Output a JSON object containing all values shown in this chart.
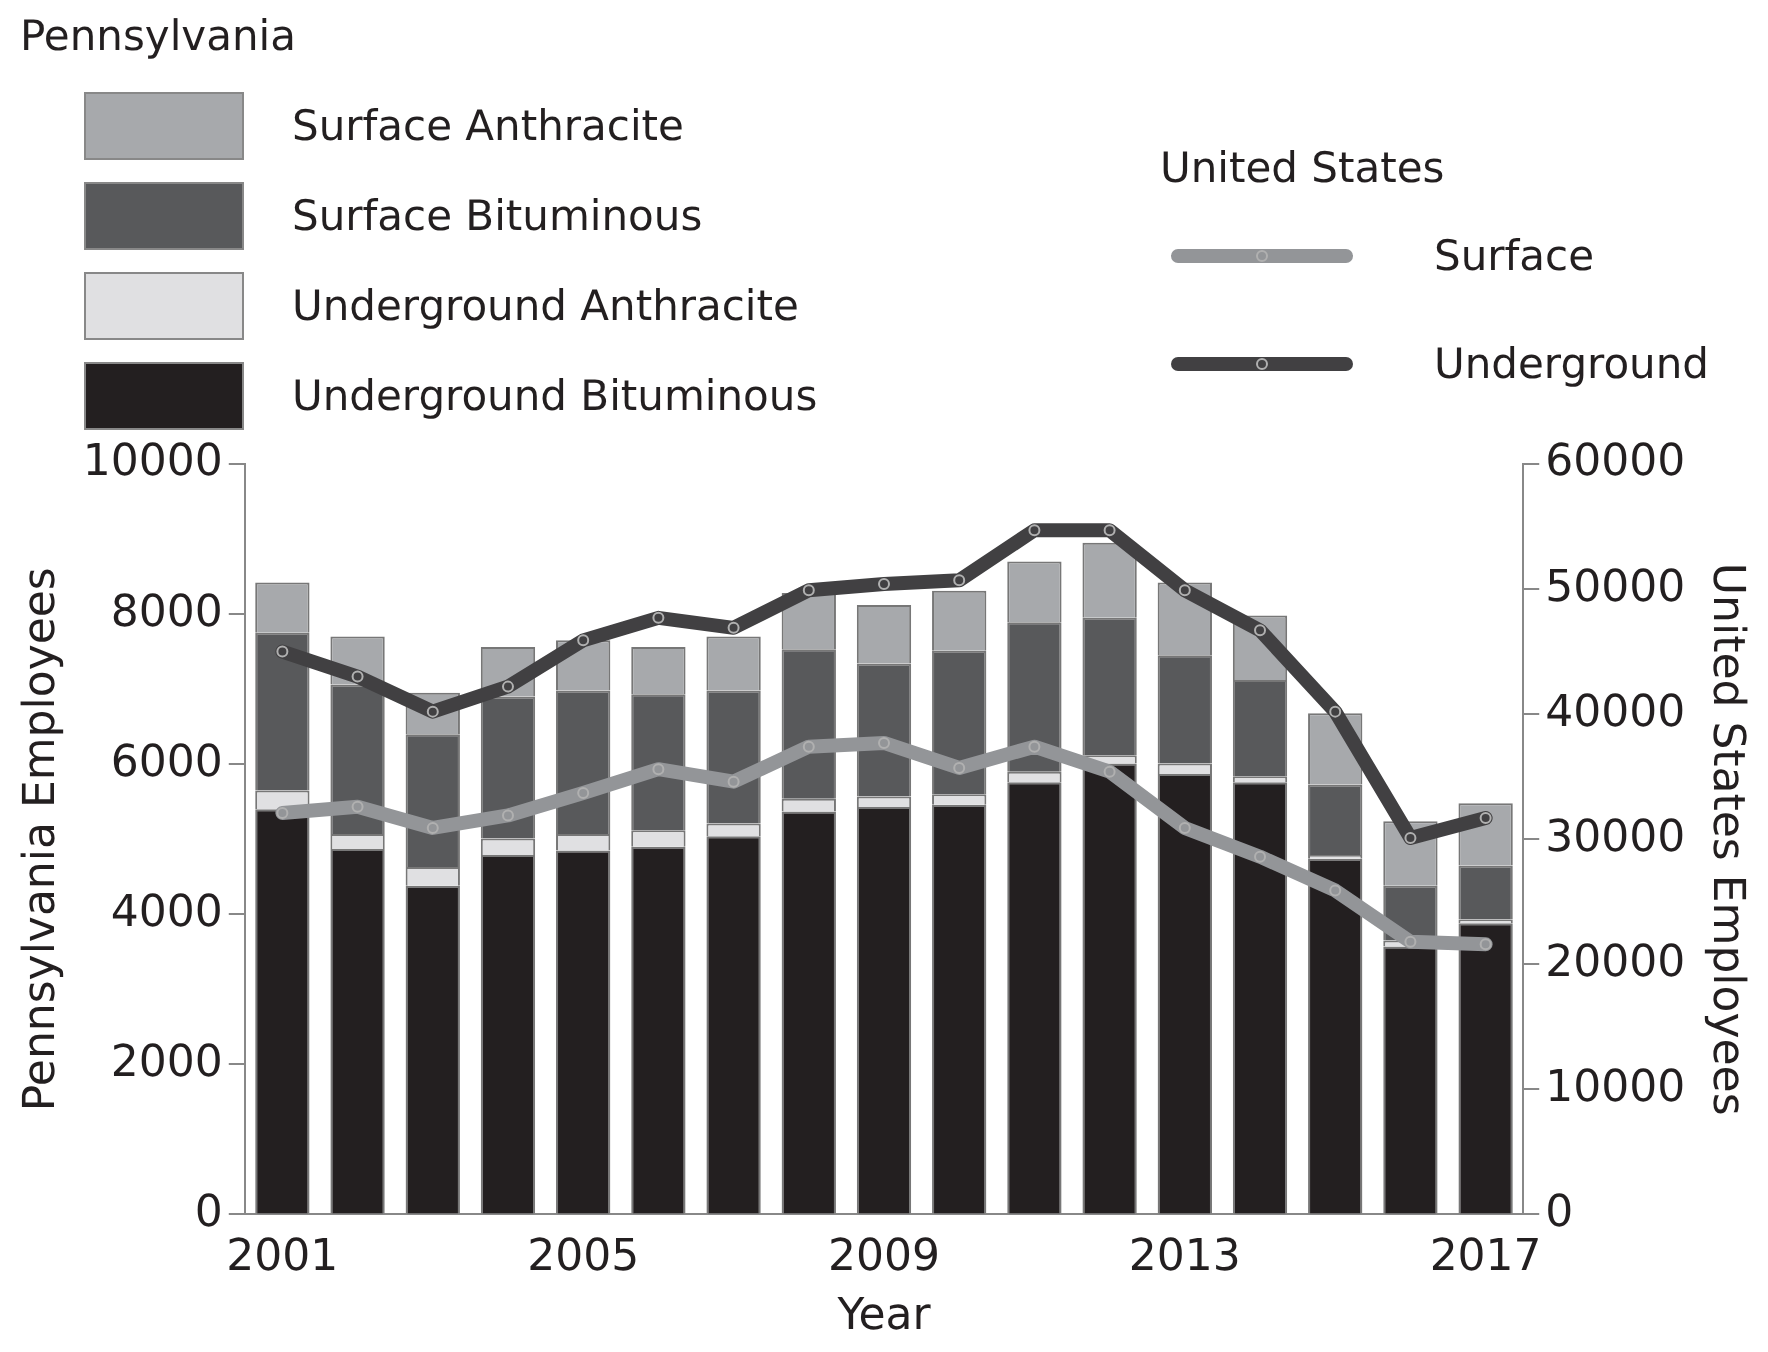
{
  "chart_data": {
    "type": "bar",
    "stacked": true,
    "xlabel": "Year",
    "ylabel": "Pennsylvania Employees",
    "y2label": "United States Employees",
    "legend_title": "Pennsylvania",
    "annotations": [
      "United States"
    ],
    "legend": "top",
    "categories": [
      "2001",
      null,
      null,
      null,
      "2005",
      null,
      null,
      null,
      "2009",
      null,
      null,
      null,
      "2013",
      null,
      null,
      null,
      "2017"
    ],
    "ylim": [
      0,
      10000
    ],
    "yticks": [
      0,
      2000,
      4000,
      6000,
      8000,
      10000
    ],
    "y2lim": [
      0,
      60000
    ],
    "y2ticks": [
      0,
      10000,
      20000,
      30000,
      40000,
      50000,
      60000
    ],
    "grid": false,
    "marker": "circle",
    "series": [
      {
        "name": "Underground Bituminous",
        "color": "#231f20",
        "values": [
          5400,
          4870,
          4380,
          4790,
          4850,
          4900,
          5040,
          5370,
          5430,
          5460,
          5760,
          6010,
          5870,
          5760,
          4740,
          3570,
          3880
        ]
      },
      {
        "name": "Underground Anthracite",
        "color": "#e0e0e2",
        "values": [
          250,
          200,
          250,
          220,
          220,
          220,
          170,
          170,
          140,
          140,
          140,
          110,
          140,
          80,
          50,
          80,
          50
        ]
      },
      {
        "name": "Surface Bituminous",
        "color": "#58595b",
        "values": [
          2100,
          1990,
          1770,
          1890,
          1910,
          1810,
          1770,
          1990,
          1770,
          1910,
          1990,
          1830,
          1440,
          1280,
          940,
          730,
          720
        ]
      },
      {
        "name": "Surface Anthracite",
        "color": "#a7a9ac",
        "values": [
          670,
          640,
          550,
          660,
          670,
          630,
          720,
          750,
          780,
          800,
          810,
          1000,
          970,
          860,
          950,
          860,
          830
        ]
      },
      {
        "name": "Surface",
        "type": "line",
        "axis": "y2",
        "color": "#939598",
        "values": [
          32100,
          32600,
          30900,
          31900,
          33700,
          35600,
          34600,
          37400,
          37700,
          35700,
          37400,
          35400,
          30900,
          28600,
          25900,
          21800,
          21600
        ]
      },
      {
        "name": "Underground",
        "type": "line",
        "axis": "y2",
        "color": "#414042",
        "values": [
          45000,
          43000,
          40200,
          42200,
          45900,
          47700,
          46900,
          49900,
          50400,
          50700,
          54700,
          54700,
          49900,
          46700,
          40200,
          30100,
          31700
        ]
      }
    ]
  }
}
